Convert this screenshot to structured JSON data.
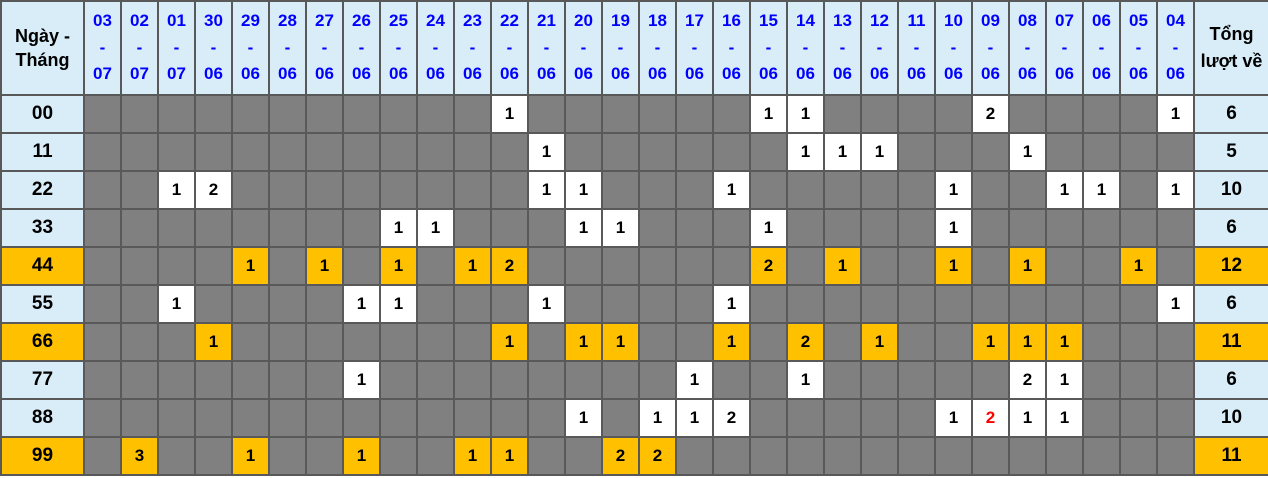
{
  "colors": {
    "header_bg": "#d9edf8",
    "header_date_text": "#0000ff",
    "empty_cell_bg": "#808080",
    "value_cell_bg": "#ffffff",
    "highlight_row_bg": "#ffc000",
    "text": "#000000",
    "red_value_text": "#ff0000",
    "border": "#595959"
  },
  "table": {
    "corner": {
      "line1": "Ngày -",
      "line2": "Tháng"
    },
    "dash": "-",
    "total_header": "Tổng lượt về",
    "columns": [
      {
        "day": "03",
        "month": "07"
      },
      {
        "day": "02",
        "month": "07"
      },
      {
        "day": "01",
        "month": "07"
      },
      {
        "day": "30",
        "month": "06"
      },
      {
        "day": "29",
        "month": "06"
      },
      {
        "day": "28",
        "month": "06"
      },
      {
        "day": "27",
        "month": "06"
      },
      {
        "day": "26",
        "month": "06"
      },
      {
        "day": "25",
        "month": "06"
      },
      {
        "day": "24",
        "month": "06"
      },
      {
        "day": "23",
        "month": "06"
      },
      {
        "day": "22",
        "month": "06"
      },
      {
        "day": "21",
        "month": "06"
      },
      {
        "day": "20",
        "month": "06"
      },
      {
        "day": "19",
        "month": "06"
      },
      {
        "day": "18",
        "month": "06"
      },
      {
        "day": "17",
        "month": "06"
      },
      {
        "day": "16",
        "month": "06"
      },
      {
        "day": "15",
        "month": "06"
      },
      {
        "day": "14",
        "month": "06"
      },
      {
        "day": "13",
        "month": "06"
      },
      {
        "day": "12",
        "month": "06"
      },
      {
        "day": "11",
        "month": "06"
      },
      {
        "day": "10",
        "month": "06"
      },
      {
        "day": "09",
        "month": "06"
      },
      {
        "day": "08",
        "month": "06"
      },
      {
        "day": "07",
        "month": "06"
      },
      {
        "day": "06",
        "month": "06"
      },
      {
        "day": "05",
        "month": "06"
      },
      {
        "day": "04",
        "month": "06"
      }
    ],
    "rows": [
      {
        "label": "00",
        "highlight": false,
        "total": "6",
        "red_cells": [],
        "cells": [
          "",
          "",
          "",
          "",
          "",
          "",
          "",
          "",
          "",
          "",
          "",
          "1",
          "",
          "",
          "",
          "",
          "",
          "",
          "1",
          "1",
          "",
          "",
          "",
          "",
          "2",
          "",
          "",
          "",
          "",
          "1"
        ]
      },
      {
        "label": "11",
        "highlight": false,
        "total": "5",
        "red_cells": [],
        "cells": [
          "",
          "",
          "",
          "",
          "",
          "",
          "",
          "",
          "",
          "",
          "",
          "",
          "1",
          "",
          "",
          "",
          "",
          "",
          "",
          "1",
          "1",
          "1",
          "",
          "",
          "",
          "1",
          "",
          "",
          "",
          ""
        ]
      },
      {
        "label": "22",
        "highlight": false,
        "total": "10",
        "red_cells": [],
        "cells": [
          "",
          "",
          "1",
          "2",
          "",
          "",
          "",
          "",
          "",
          "",
          "",
          "",
          "1",
          "1",
          "",
          "",
          "",
          "1",
          "",
          "",
          "",
          "",
          "",
          "1",
          "",
          "",
          "1",
          "1",
          "",
          "1"
        ]
      },
      {
        "label": "33",
        "highlight": false,
        "total": "6",
        "red_cells": [],
        "cells": [
          "",
          "",
          "",
          "",
          "",
          "",
          "",
          "",
          "1",
          "1",
          "",
          "",
          "",
          "1",
          "1",
          "",
          "",
          "",
          "1",
          "",
          "",
          "",
          "",
          "1",
          "",
          "",
          "",
          "",
          "",
          ""
        ]
      },
      {
        "label": "44",
        "highlight": true,
        "total": "12",
        "red_cells": [],
        "cells": [
          "",
          "",
          "",
          "",
          "1",
          "",
          "1",
          "",
          "1",
          "",
          "1",
          "2",
          "",
          "",
          "",
          "",
          "",
          "",
          "2",
          "",
          "1",
          "",
          "",
          "1",
          "",
          "1",
          "",
          "",
          "1",
          ""
        ]
      },
      {
        "label": "55",
        "highlight": false,
        "total": "6",
        "red_cells": [],
        "cells": [
          "",
          "",
          "1",
          "",
          "",
          "",
          "",
          "1",
          "1",
          "",
          "",
          "",
          "1",
          "",
          "",
          "",
          "",
          "1",
          "",
          "",
          "",
          "",
          "",
          "",
          "",
          "",
          "",
          "",
          "",
          "1"
        ]
      },
      {
        "label": "66",
        "highlight": true,
        "total": "11",
        "red_cells": [],
        "cells": [
          "",
          "",
          "",
          "1",
          "",
          "",
          "",
          "",
          "",
          "",
          "",
          "1",
          "",
          "1",
          "1",
          "",
          "",
          "1",
          "",
          "2",
          "",
          "1",
          "",
          "",
          "1",
          "1",
          "1",
          "",
          "",
          ""
        ]
      },
      {
        "label": "77",
        "highlight": false,
        "total": "6",
        "red_cells": [],
        "cells": [
          "",
          "",
          "",
          "",
          "",
          "",
          "",
          "1",
          "",
          "",
          "",
          "",
          "",
          "",
          "",
          "",
          "1",
          "",
          "",
          "1",
          "",
          "",
          "",
          "",
          "",
          "2",
          "1",
          "",
          "",
          ""
        ]
      },
      {
        "label": "88",
        "highlight": false,
        "total": "10",
        "red_cells": [
          24
        ],
        "cells": [
          "",
          "",
          "",
          "",
          "",
          "",
          "",
          "",
          "",
          "",
          "",
          "",
          "",
          "1",
          "",
          "1",
          "1",
          "2",
          "",
          "",
          "",
          "",
          "",
          "1",
          "2",
          "1",
          "1",
          "",
          "",
          ""
        ]
      },
      {
        "label": "99",
        "highlight": true,
        "total": "11",
        "red_cells": [],
        "cells": [
          "",
          "3",
          "",
          "",
          "1",
          "",
          "",
          "1",
          "",
          "",
          "1",
          "1",
          "",
          "",
          "2",
          "2",
          "",
          "",
          "",
          "",
          "",
          "",
          "",
          "",
          "",
          "",
          "",
          "",
          "",
          ""
        ]
      }
    ]
  }
}
